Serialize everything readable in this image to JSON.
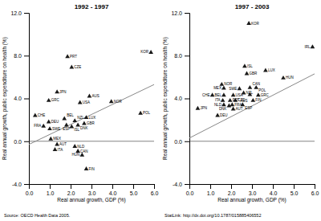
{
  "chart_data": [
    {
      "type": "scatter",
      "title": "1992 - 1997",
      "x_label": "Real annual growth, GDP (%)",
      "y_label": "Real annual growth, public expenditure on health (%)",
      "xlim": [
        0.0,
        6.0
      ],
      "ylim": [
        -4.0,
        12.0
      ],
      "xticks": [
        {
          "value": 0.0,
          "label": "0.0"
        },
        {
          "value": 1.0,
          "label": "1.0"
        },
        {
          "value": 2.0,
          "label": "2.0"
        },
        {
          "value": 3.0,
          "label": "3.0"
        },
        {
          "value": 4.0,
          "label": "4.0"
        },
        {
          "value": 5.0,
          "label": "5.0"
        },
        {
          "value": 6.0,
          "label": "6.0"
        }
      ],
      "yticks": [
        {
          "value": -4.0,
          "label": "-4.0"
        },
        {
          "value": 0.0,
          "label": "0.0"
        },
        {
          "value": 4.0,
          "label": "4.0"
        },
        {
          "value": 8.0,
          "label": "8.0"
        },
        {
          "value": 12.0,
          "label": "12.0"
        }
      ],
      "marker": "triangle",
      "color": "#1a1a1a",
      "point_labels": [
        "KOR",
        "PRT",
        "CZE",
        "JPN",
        "GRC",
        "AUS",
        "USA",
        "NOR",
        "POL",
        "CHE",
        "DEU",
        "BEL",
        "NZL",
        "LUX",
        "FRA",
        "SWE",
        "ESP",
        "ISL",
        "DNK",
        "GBR",
        "MEX",
        "AUT",
        "NLD",
        "ITA",
        "CAN",
        "HUN",
        "FIN"
      ],
      "x": [
        5.85,
        1.85,
        2.05,
        1.35,
        0.95,
        2.9,
        2.45,
        3.95,
        5.35,
        0.3,
        0.95,
        1.7,
        2.2,
        2.75,
        0.7,
        1.0,
        1.8,
        2.05,
        2.35,
        2.65,
        1.05,
        1.35,
        2.2,
        1.25,
        2.35,
        2.55,
        2.75
      ],
      "values": [
        8.3,
        7.9,
        6.9,
        4.6,
        3.8,
        4.2,
        3.6,
        3.7,
        2.6,
        2.4,
        1.8,
        2.1,
        1.9,
        2.2,
        1.4,
        1.15,
        1.5,
        1.35,
        1.5,
        1.65,
        0.2,
        -0.3,
        -0.5,
        -0.8,
        -0.95,
        -1.3,
        -2.6
      ],
      "trendline": {
        "x": [
          0.0,
          6.0
        ],
        "values": [
          -0.3,
          5.3
        ],
        "color": "#888888"
      },
      "reference_lines": [
        0
      ],
      "annotations": [
        "Source: OECD Health Data 2005."
      ]
    },
    {
      "type": "scatter",
      "title": "1997 - 2003",
      "x_label": "Real annual growth, GDP (%)",
      "y_label": "Real annual growth, public expenditure on health (%)",
      "xlim": [
        0.0,
        6.0
      ],
      "ylim": [
        -4.0,
        12.0
      ],
      "xticks": [
        {
          "value": 0.0,
          "label": "0.0"
        },
        {
          "value": 1.0,
          "label": "1.0"
        },
        {
          "value": 2.0,
          "label": "2.0"
        },
        {
          "value": 3.0,
          "label": "3.0"
        },
        {
          "value": 4.0,
          "label": "4.0"
        },
        {
          "value": 5.0,
          "label": "5.0"
        },
        {
          "value": 6.0,
          "label": "6.0"
        }
      ],
      "yticks": [
        {
          "value": -4.0,
          "label": "-4.0"
        },
        {
          "value": 0.0,
          "label": "0.0"
        },
        {
          "value": 4.0,
          "label": "4.0"
        },
        {
          "value": 8.0,
          "label": "8.0"
        },
        {
          "value": 12.0,
          "label": "12.0"
        }
      ],
      "marker": "triangle",
      "color": "#1a1a1a",
      "point_labels": [
        "KOR",
        "IRL",
        "ISL",
        "GBR",
        "LUX",
        "HUN",
        "NOR",
        "MEX",
        "SWE",
        "CAN",
        "POL",
        "CHE",
        "BEL",
        "USA",
        "NZL",
        "AUS",
        "GRC",
        "ITA",
        "PRT",
        "CZE",
        "FIN",
        "NLD",
        "DNK",
        "FRA",
        "ESP",
        "AUT",
        "JPN",
        "DEU"
      ],
      "x": [
        2.85,
        5.9,
        2.65,
        2.75,
        3.65,
        4.5,
        1.55,
        1.65,
        2.4,
        2.9,
        3.2,
        1.1,
        1.65,
        2.1,
        2.6,
        2.9,
        3.3,
        1.6,
        1.95,
        2.2,
        3.05,
        1.65,
        1.9,
        2.05,
        2.55,
        2.1,
        0.4,
        1.35
      ],
      "values": [
        11.0,
        8.8,
        7.0,
        6.3,
        6.6,
        5.9,
        5.3,
        4.95,
        4.9,
        5.0,
        5.0,
        4.3,
        4.3,
        4.3,
        4.5,
        4.35,
        4.3,
        3.8,
        3.8,
        3.8,
        3.8,
        3.4,
        3.3,
        3.4,
        3.4,
        3.0,
        3.05,
        2.4
      ],
      "trendline": {
        "x": [
          0.0,
          6.0
        ],
        "values": [
          0.3,
          6.3
        ],
        "color": "#888888"
      },
      "reference_lines": [
        0
      ],
      "annotations": [
        "StatLink: http://dx.doi.org/10.1787/015885406552"
      ]
    }
  ]
}
